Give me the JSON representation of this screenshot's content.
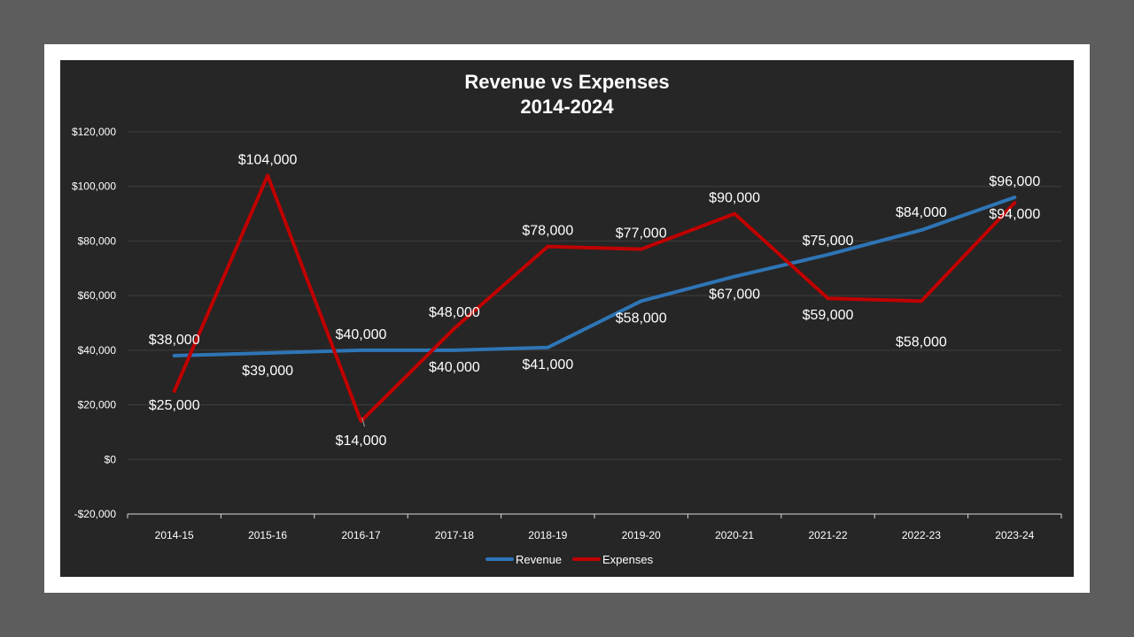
{
  "chart_data": {
    "type": "line",
    "title": "Revenue vs Expenses",
    "subtitle": "2014-2024",
    "categories": [
      "2014-15",
      "2015-16",
      "2016-17",
      "2017-18",
      "2018-19",
      "2019-20",
      "2020-21",
      "2021-22",
      "2022-23",
      "2023-24"
    ],
    "series": [
      {
        "name": "Revenue",
        "color": "#2e75b6",
        "values": [
          38000,
          39000,
          40000,
          40000,
          41000,
          58000,
          67000,
          75000,
          84000,
          96000
        ],
        "labels": [
          "$38,000",
          "$39,000",
          "$40,000",
          "$40,000",
          "$41,000",
          "$58,000",
          "$67,000",
          "$75,000",
          "$84,000",
          "$96,000"
        ]
      },
      {
        "name": "Expenses",
        "color": "#c00000",
        "values": [
          25000,
          104000,
          14000,
          48000,
          78000,
          77000,
          90000,
          59000,
          58000,
          94000
        ],
        "labels": [
          "$25,000",
          "$104,000",
          "$14,000",
          "$48,000",
          "$78,000",
          "$77,000",
          "$90,000",
          "$59,000",
          "$58,000",
          "$94,000"
        ]
      }
    ],
    "ylim": [
      -20000,
      120000
    ],
    "yticks": [
      -20000,
      0,
      20000,
      40000,
      60000,
      80000,
      100000,
      120000
    ],
    "ytick_labels": [
      "-$20,000",
      "$0",
      "$20,000",
      "$40,000",
      "$60,000",
      "$80,000",
      "$100,000",
      "$120,000"
    ],
    "grid": true,
    "legend_position": "bottom"
  }
}
